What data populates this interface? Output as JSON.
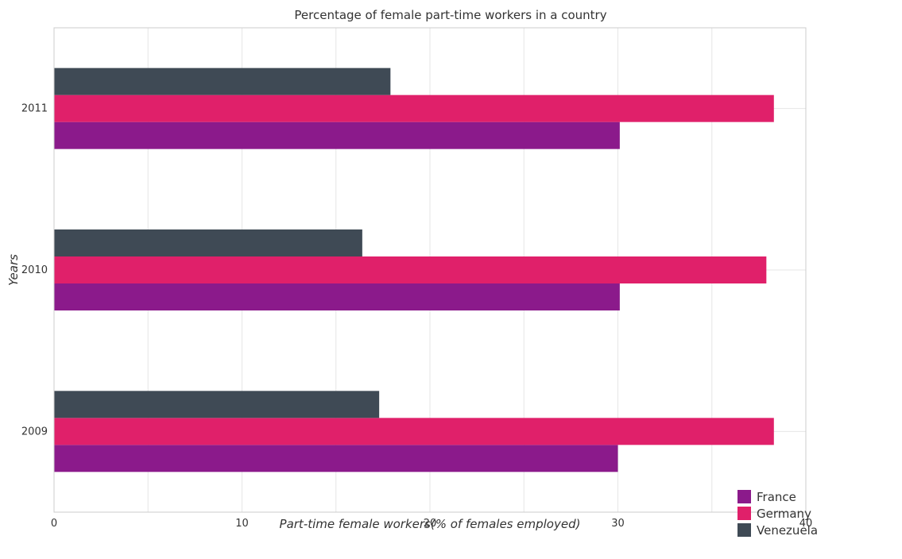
{
  "chart_data": {
    "type": "bar",
    "orientation": "horizontal",
    "title": "Percentage of female part-time workers in a country",
    "xlabel": "Part-time female workers(% of females employed)",
    "ylabel": "Years",
    "categories": [
      "2009",
      "2010",
      "2011"
    ],
    "series": [
      {
        "name": "France",
        "color": "#8b1a8b",
        "values": [
          30.0,
          30.1,
          30.1
        ]
      },
      {
        "name": "Germany",
        "color": "#e0206a",
        "values": [
          38.3,
          37.9,
          38.3
        ]
      },
      {
        "name": "Venezuela",
        "color": "#3f4a55",
        "values": [
          17.3,
          16.4,
          17.9
        ]
      }
    ],
    "xlim": [
      0,
      40
    ],
    "xticks": [
      "0",
      "10",
      "20",
      "30",
      "40"
    ],
    "grid": true,
    "legend_position": "bottom-right"
  }
}
